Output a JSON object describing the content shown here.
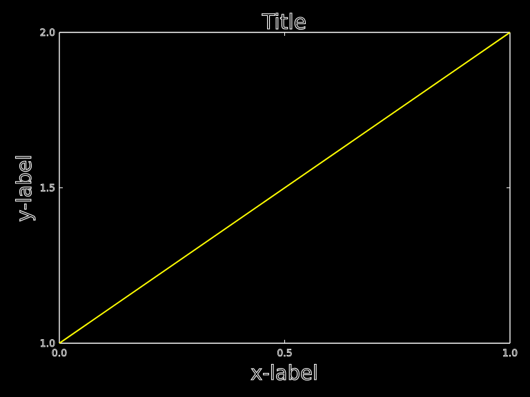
{
  "chart_data": {
    "type": "line",
    "title": "Title",
    "xlabel": "x-label",
    "ylabel": "y-label",
    "xlim": [
      0.0,
      1.0
    ],
    "ylim": [
      1.0,
      2.0
    ],
    "xticks": [
      0.0,
      0.5,
      1.0
    ],
    "xtick_labels": [
      "0.0",
      "0.5",
      "1.0"
    ],
    "yticks": [
      1.0,
      1.5,
      2.0
    ],
    "ytick_labels": [
      "1.0",
      "1.5",
      "2.0"
    ],
    "grid": false,
    "series": [
      {
        "name": "line",
        "color": "#ffff00",
        "x": [
          0.0,
          1.0
        ],
        "y": [
          1.0,
          2.0
        ]
      }
    ]
  },
  "colors": {
    "background": "#000000",
    "axes": "#ffffff",
    "series": "#ffff00"
  }
}
